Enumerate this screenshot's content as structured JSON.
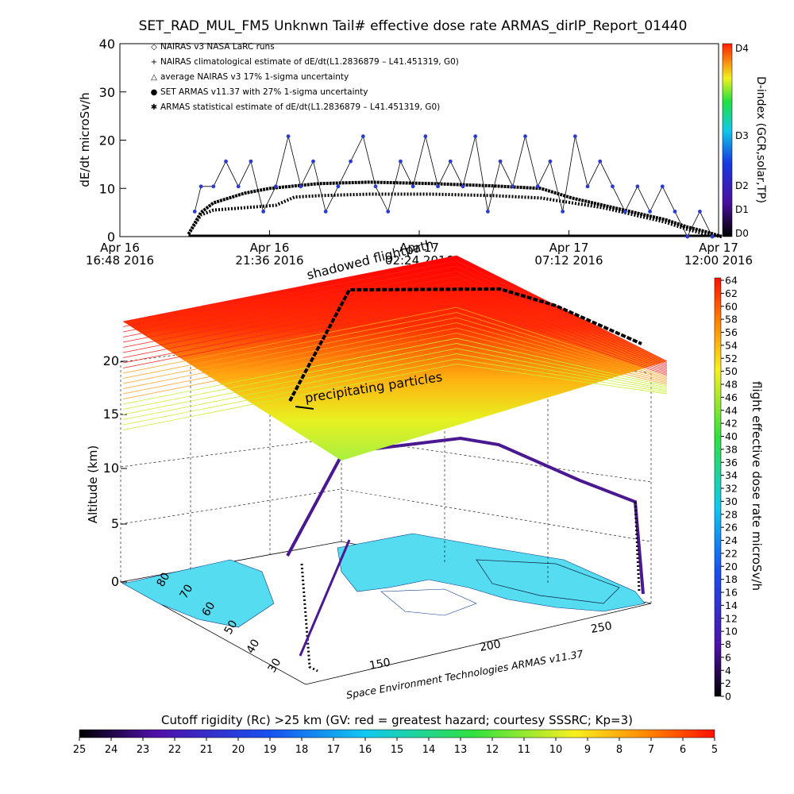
{
  "title": "SET_RAD_MUL_FM5 Unknwn Tail#  effective dose rate ARMAS_dirIP_Report_01440",
  "colors": {
    "nairas_model": "#000000",
    "armas": "#3a1a8a",
    "armas_marker": "#2a3ccc",
    "map_ocean": "#ffffff",
    "map_land": "#55dcf0",
    "flight_path": "#4a1890"
  },
  "chart_data": [
    {
      "type": "line",
      "ylabel": "dE/dt microSv/h",
      "ylim": [
        0,
        40
      ],
      "yticks": [
        "0",
        "10",
        "20",
        "30",
        "40"
      ],
      "xlim": [
        "2016-04-16 16:48",
        "2016-04-17 12:00"
      ],
      "xticks": [
        {
          "line1": "Apr 16",
          "line2": "16:48 2016"
        },
        {
          "line1": "Apr 16",
          "line2": "21:36 2016"
        },
        {
          "line1": "Apr 17",
          "line2": "02:24 2016"
        },
        {
          "line1": "Apr 17",
          "line2": "07:12 2016"
        },
        {
          "line1": "Apr 17",
          "line2": "12:00 2016"
        }
      ],
      "legend": [
        {
          "symbol": "◇",
          "label": "NAIRAS v3 NASA LaRC runs"
        },
        {
          "symbol": "+",
          "label": "NAIRAS climatological estimate of dE/dt(L1.2836879 – L41.451319, G0)"
        },
        {
          "symbol": "△",
          "label": "average NAIRAS v3 17% 1-sigma uncertainty"
        },
        {
          "symbol": "●",
          "label": "SET ARMAS v11.37 with 27% 1-sigma uncertainty"
        },
        {
          "symbol": "✱",
          "label": "ARMAS statistical estimate of dE/dt(L1.2836879 – L41.451319, G0)"
        }
      ],
      "series": [
        {
          "name": "NAIRAS climatological estimate of dE/dt(L1.2836879 – L41.451319, G0)",
          "x_hours": [
            2.2,
            2.6,
            3.0,
            4.0,
            4.8,
            5.6,
            6.4,
            8,
            10,
            12,
            13.5,
            14.5,
            15.5,
            16.5,
            17.5,
            18.2,
            18.8,
            19.3
          ],
          "values": [
            0.5,
            5,
            7,
            9,
            10,
            10.5,
            11,
            11.3,
            11,
            10.5,
            10,
            8,
            6.5,
            5,
            3.5,
            2,
            1,
            0
          ]
        },
        {
          "name": "ARMAS statistical estimate of dE/dt(L1.2836879 – L41.451319, G0)",
          "x_hours": [
            2.2,
            2.6,
            3.0,
            4.0,
            5.0,
            5.6,
            6.4,
            8,
            10,
            12,
            13.5,
            14.5,
            15.5,
            16.5,
            17.5,
            18.2,
            18.8,
            19.3
          ],
          "values": [
            0.5,
            4.5,
            5.5,
            6,
            6.5,
            8.2,
            8.5,
            8.8,
            8.8,
            8.5,
            8,
            7,
            6,
            4.5,
            3,
            1.5,
            0.5,
            0
          ]
        },
        {
          "name": "SET ARMAS v11.37 with 27% 1-sigma uncertainty",
          "x_hours": [
            2.4,
            2.6,
            3.0,
            3.4,
            3.8,
            4.2,
            4.6,
            5.0,
            5.4,
            5.8,
            6.2,
            6.6,
            7.0,
            7.4,
            7.8,
            8.2,
            8.6,
            9.0,
            9.4,
            9.8,
            10.2,
            10.6,
            11.0,
            11.4,
            11.8,
            12.2,
            12.6,
            13.0,
            13.4,
            13.8,
            14.2,
            14.6,
            15.0,
            15.4,
            15.8,
            16.2,
            16.6,
            17.0,
            17.4,
            17.8,
            18.2,
            18.6,
            19.0
          ],
          "values": [
            5.2,
            10.4,
            10.4,
            15.6,
            10.4,
            15.6,
            5.2,
            10.4,
            20.8,
            10.4,
            15.6,
            5.2,
            10.4,
            15.6,
            20.8,
            10.4,
            5.2,
            15.6,
            10.4,
            20.8,
            10.4,
            15.6,
            10.4,
            20.8,
            5.2,
            15.6,
            10.4,
            20.8,
            10.4,
            15.6,
            5.2,
            20.8,
            10.4,
            15.6,
            10.4,
            5.2,
            10.4,
            5.2,
            10.4,
            5.2,
            0,
            5.2,
            0
          ]
        }
      ],
      "right_colorbar": {
        "label": "D-index (GCR,solar,TP)",
        "ticks": [
          "D0",
          "D1",
          "D2",
          "D3",
          "D4"
        ]
      }
    },
    {
      "type": "3d-surface-map",
      "annotations": [
        "shadowed flightpath",
        "precipitating particles"
      ],
      "zlabel": "Altitude (km)",
      "zticks": [
        "0",
        "5",
        "10",
        "15",
        "20"
      ],
      "lat_ticks": [
        "30",
        "40",
        "50",
        "60",
        "70",
        "80"
      ],
      "lon_ticks": [
        "150",
        "200",
        "250"
      ],
      "credit": "Space Environment Technologies ARMAS v11.37",
      "colorbar_right": {
        "label": "flight effective dose rate microSv/h",
        "range": [
          0,
          64
        ],
        "ticks": [
          "0",
          "2",
          "4",
          "6",
          "8",
          "10",
          "12",
          "14",
          "16",
          "18",
          "20",
          "22",
          "24",
          "26",
          "28",
          "30",
          "32",
          "34",
          "36",
          "38",
          "40",
          "42",
          "44",
          "46",
          "48",
          "50",
          "52",
          "54",
          "56",
          "58",
          "60",
          "62",
          "64"
        ]
      },
      "colorbar_bottom": {
        "label": "Cutoff rigidity (Rc) >25 km (GV: red = greatest hazard; courtesy SSSRC; Kp=3)",
        "ticks": [
          "25",
          "24",
          "23",
          "22",
          "21",
          "20",
          "19",
          "18",
          "17",
          "16",
          "15",
          "14",
          "13",
          "12",
          "11",
          "10",
          "9",
          "8",
          "7",
          "6",
          "5"
        ]
      }
    }
  ]
}
